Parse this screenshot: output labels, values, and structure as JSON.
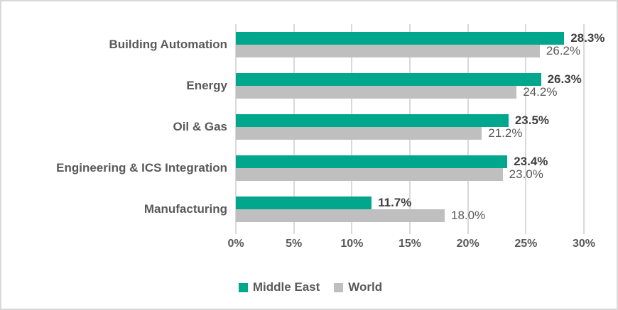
{
  "chart_data": {
    "type": "bar",
    "orientation": "horizontal",
    "categories": [
      "Building Automation",
      "Energy",
      "Oil & Gas",
      "Engineering & ICS Integration",
      "Manufacturing"
    ],
    "series": [
      {
        "name": "Middle East",
        "color": "#00a78c",
        "values": [
          28.3,
          26.3,
          23.5,
          23.4,
          11.7
        ],
        "data_labels": [
          "28.3%",
          "26.3%",
          "23.5%",
          "23.4%",
          "11.7%"
        ],
        "label_weight": "bold",
        "label_color": "#3f3f3f"
      },
      {
        "name": "World",
        "color": "#bfbfbf",
        "values": [
          26.2,
          24.2,
          21.2,
          23.0,
          18.0
        ],
        "data_labels": [
          "26.2%",
          "24.2%",
          "21.2%",
          "23.0%",
          "18.0%"
        ],
        "label_weight": "normal",
        "label_color": "#595959"
      }
    ],
    "x_axis": {
      "tick_labels": [
        "0%",
        "5%",
        "10%",
        "15%",
        "20%",
        "25%",
        "30%"
      ],
      "tick_values": [
        0,
        5,
        10,
        15,
        20,
        25,
        30
      ],
      "min": 0,
      "max": 30
    },
    "grid": true,
    "gridline_color": "#d9d9d9",
    "legend_position": "bottom",
    "category_text_color": "#595959",
    "axis_text_color": "#595959",
    "border_color": "#d9d9d9",
    "background_color": "#ffffff"
  }
}
